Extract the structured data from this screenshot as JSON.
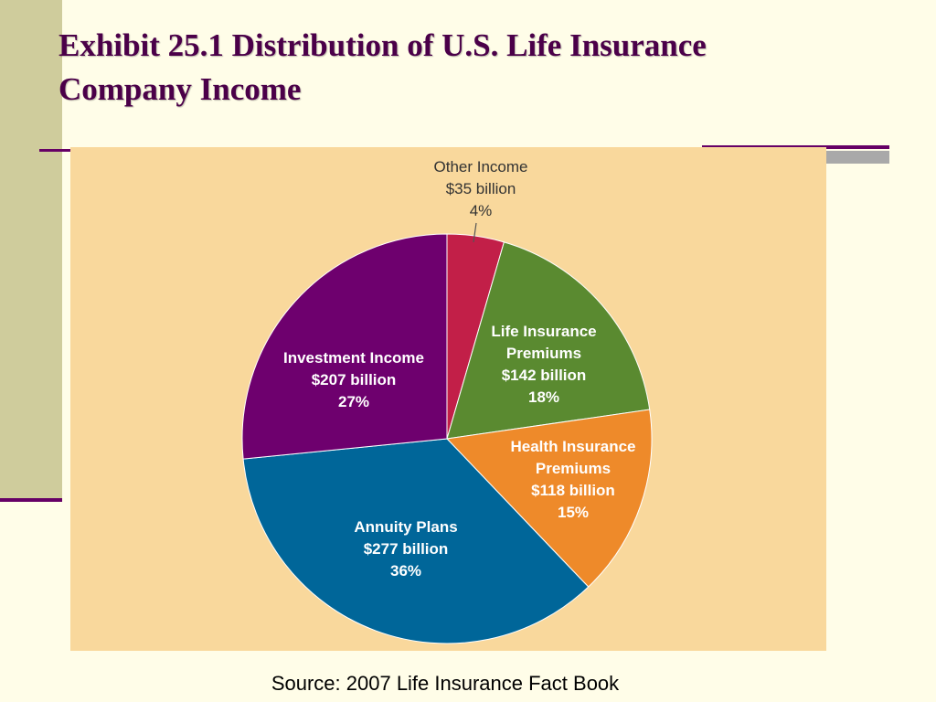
{
  "slide": {
    "title_line1": "Exhibit 25.1 Distribution of U.S. Life Insurance",
    "title_line2": "Company Income",
    "source": "Source: 2007 Life Insurance Fact Book"
  },
  "colors": {
    "background": "#FFFDE8",
    "chart_panel": "#F9D89C",
    "accent": "#660066",
    "title": "#4B0049"
  },
  "chart_data": {
    "type": "pie",
    "title": "",
    "slices": [
      {
        "id": "other",
        "lines": [
          "Other Income",
          "$35 billion",
          "4%"
        ],
        "name": "Other Income",
        "value": 35,
        "percent": 4,
        "color": "#C21F48",
        "label_style": "callout"
      },
      {
        "id": "life",
        "lines": [
          "Life Insurance",
          "Premiums",
          "$142 billion",
          "18%"
        ],
        "name": "Life Insurance Premiums",
        "value": 142,
        "percent": 18,
        "color": "#5A8A30",
        "label_style": "inside"
      },
      {
        "id": "health",
        "lines": [
          "Health Insurance",
          "Premiums",
          "$118 billion",
          "15%"
        ],
        "name": "Health Insurance Premiums",
        "value": 118,
        "percent": 15,
        "color": "#EE8A2A",
        "label_style": "inside"
      },
      {
        "id": "annuity",
        "lines": [
          "Annuity Plans",
          "$277 billion",
          "36%"
        ],
        "name": "Annuity Plans",
        "value": 277,
        "percent": 36,
        "color": "#006699",
        "label_style": "inside"
      },
      {
        "id": "investment",
        "lines": [
          "Investment Income",
          "$207 billion",
          "27%"
        ],
        "name": "Investment Income",
        "value": 207,
        "percent": 27,
        "color": "#6E006E",
        "label_style": "inside"
      }
    ],
    "start": "12 o'clock",
    "direction": "clockwise",
    "legend": "none"
  }
}
